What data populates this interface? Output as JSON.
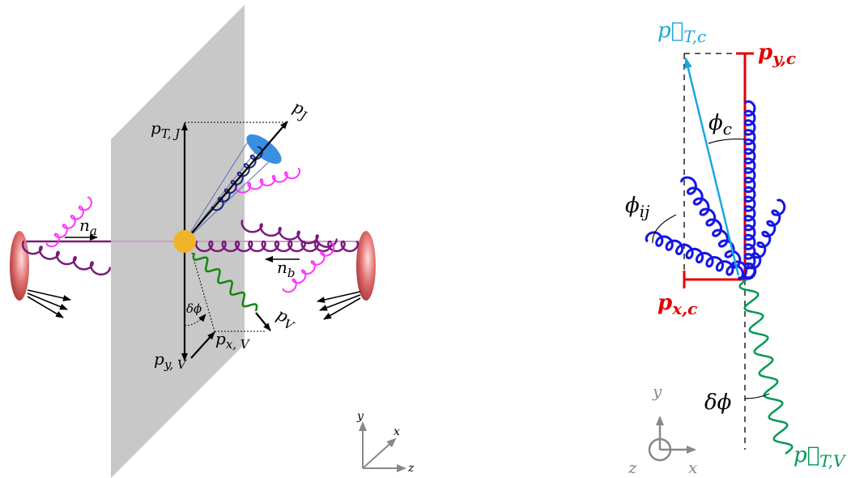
{
  "left_panel": {
    "labels": {
      "p_tj": "p",
      "p_tj_sub": "T, J",
      "p_j": "p",
      "p_j_sub": "J",
      "n_a": "n",
      "n_a_sub": "a",
      "n_b": "n",
      "n_b_sub": "b",
      "p_v": "p",
      "p_v_sub": "V",
      "delta_phi": "δϕ",
      "p_xv": "p",
      "p_xv_sub": "x, V",
      "p_yv": "p",
      "p_yv_sub": "y, V"
    },
    "axes": {
      "x": "x",
      "y": "y",
      "z": "z"
    }
  },
  "right_panel": {
    "labels": {
      "p_tc": "p⃗",
      "p_tc_sub": "T,c",
      "p_yc": "p",
      "p_yc_sub": "y,c",
      "phi_c": "ϕ",
      "phi_c_sub": "c",
      "phi_ij": "ϕ",
      "phi_ij_sub": "ij",
      "p_xc": "p",
      "p_xc_sub": "x,c",
      "delta_phi": "δϕ",
      "p_tv": "p⃗",
      "p_tv_sub": "T,V"
    },
    "axes": {
      "x": "x",
      "y": "y",
      "z": "z"
    }
  },
  "colors": {
    "plane": "#c8c8c8",
    "gluon_purple": "#7a1a7a",
    "gluon_magenta": "#ff33ff",
    "gluon_navy": "#1a237e",
    "gluon_blue": "#1515e6",
    "boson_green": "#118811",
    "boson_teal": "#009955",
    "vertex": "#f0b429",
    "jet": "#3b8fe0",
    "proton": "#d05050",
    "cyan": "#18a7e0",
    "red": "#e00000"
  }
}
